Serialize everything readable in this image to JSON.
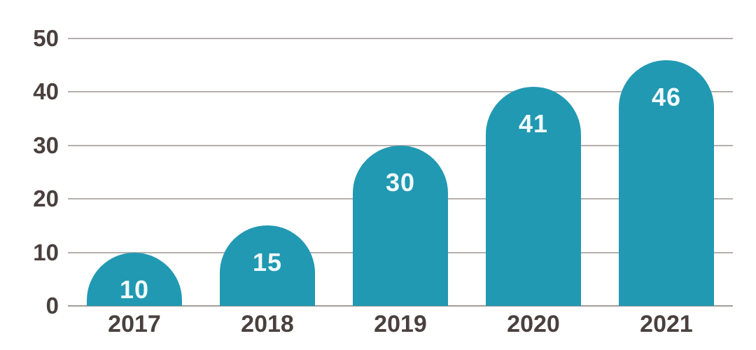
{
  "chart_data": {
    "type": "bar",
    "categories": [
      "2017",
      "2018",
      "2019",
      "2020",
      "2021"
    ],
    "values": [
      10,
      15,
      30,
      41,
      46
    ],
    "title": "",
    "xlabel": "",
    "ylabel": "",
    "ylim": [
      0,
      50
    ],
    "yticks": [
      0,
      10,
      20,
      30,
      40,
      50
    ],
    "grid": true,
    "legend": "none",
    "bar_color": "#2199b2",
    "value_label_color": "#f2fafb",
    "axis_label_color": "#4a403e",
    "gridline_color": "#b5b0ad",
    "baseline_color": "#a19c99",
    "background_color": "#ffffff"
  }
}
